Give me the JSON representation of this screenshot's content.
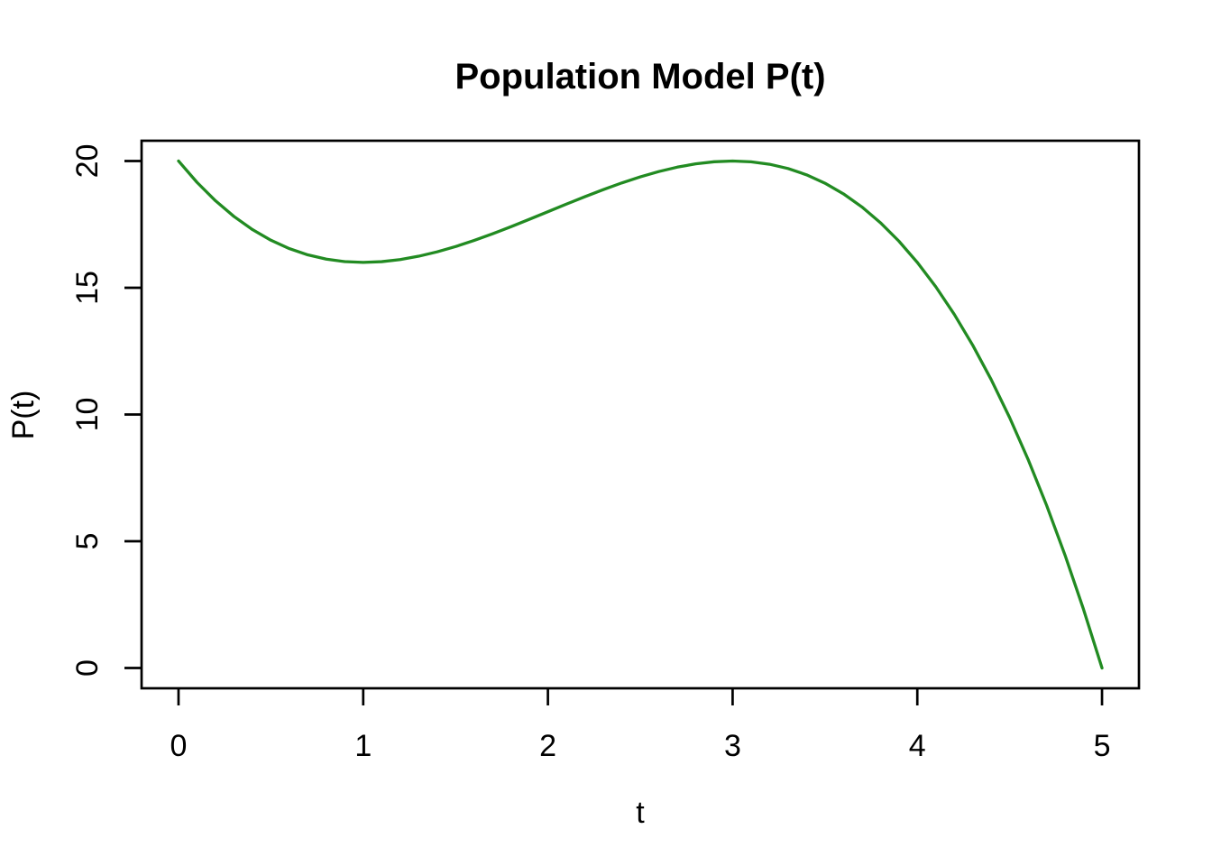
{
  "chart_data": {
    "type": "line",
    "title": "Population Model P(t)",
    "xlabel": "t",
    "ylabel": "P(t)",
    "xlim": [
      0,
      5
    ],
    "ylim": [
      0,
      20
    ],
    "xticks": [
      "0",
      "1",
      "2",
      "3",
      "4",
      "5"
    ],
    "xtick_values": [
      0,
      1,
      2,
      3,
      4,
      5
    ],
    "yticks": [
      "0",
      "5",
      "10",
      "15",
      "20"
    ],
    "ytick_values": [
      0,
      5,
      10,
      15,
      20
    ],
    "axis_expansion": 0.04,
    "grid": false,
    "legend_position": "none",
    "background_color": "#FFFFFF",
    "axis_color": "#000000",
    "line_color": "#228B22",
    "series": [
      {
        "x": [
          0,
          0.1,
          0.2,
          0.3,
          0.4,
          0.5,
          0.6,
          0.7,
          0.8,
          0.9,
          1.0,
          1.1,
          1.2,
          1.3,
          1.4,
          1.5,
          1.6,
          1.7,
          1.8,
          1.9,
          2.0,
          2.1,
          2.2,
          2.3,
          2.4,
          2.5,
          2.6,
          2.7,
          2.8,
          2.9,
          3.0,
          3.1,
          3.2,
          3.3,
          3.4,
          3.5,
          3.6,
          3.7,
          3.8,
          3.9,
          4.0,
          4.1,
          4.2,
          4.3,
          4.4,
          4.5,
          4.6,
          4.7,
          4.8,
          4.9,
          5.0
        ],
        "y": [
          20,
          19.159,
          18.432,
          17.813,
          17.296,
          16.875,
          16.544,
          16.297,
          16.128,
          16.031,
          16,
          16.029,
          16.112,
          16.243,
          16.416,
          16.625,
          16.864,
          17.127,
          17.408,
          17.701,
          18,
          18.299,
          18.592,
          18.873,
          19.136,
          19.375,
          19.584,
          19.757,
          19.888,
          19.971,
          20,
          19.969,
          19.872,
          19.703,
          19.456,
          19.125,
          18.704,
          18.187,
          17.568,
          16.841,
          16,
          15.039,
          13.952,
          12.733,
          11.376,
          9.875,
          8.224,
          6.417,
          4.448,
          2.311,
          0
        ]
      }
    ]
  }
}
